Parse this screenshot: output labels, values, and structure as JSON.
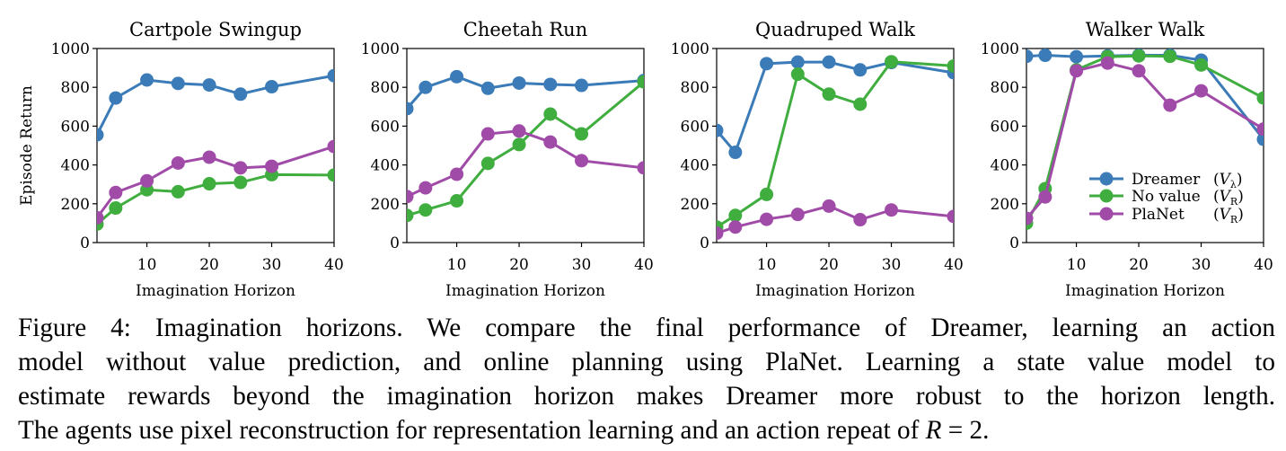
{
  "chart_data": [
    {
      "type": "line",
      "title": "Cartpole Swingup",
      "xlabel": "Imagination Horizon",
      "ylabel": "Episode Return",
      "x": [
        2,
        5,
        10,
        15,
        20,
        25,
        30,
        40
      ],
      "xlim": [
        2,
        40
      ],
      "ylim": [
        0,
        1000
      ],
      "xticks": [
        10,
        20,
        30,
        40
      ],
      "yticks": [
        0,
        200,
        400,
        600,
        800,
        1000
      ],
      "series": [
        {
          "name": "Dreamer",
          "color": "#3a7bb8",
          "values": [
            555,
            745,
            838,
            820,
            812,
            765,
            803,
            860
          ]
        },
        {
          "name": "No value",
          "color": "#3fae3f",
          "values": [
            95,
            178,
            272,
            262,
            303,
            310,
            350,
            348
          ]
        },
        {
          "name": "PlaNet",
          "color": "#a14ba8",
          "values": [
            128,
            258,
            318,
            410,
            440,
            385,
            393,
            495
          ]
        }
      ]
    },
    {
      "type": "line",
      "title": "Cheetah Run",
      "xlabel": "Imagination Horizon",
      "ylabel": "",
      "x": [
        2,
        5,
        10,
        15,
        20,
        25,
        30,
        40
      ],
      "xlim": [
        2,
        40
      ],
      "ylim": [
        0,
        1000
      ],
      "xticks": [
        10,
        20,
        30,
        40
      ],
      "yticks": [
        0,
        200,
        400,
        600,
        800,
        1000
      ],
      "series": [
        {
          "name": "Dreamer",
          "color": "#3a7bb8",
          "values": [
            690,
            800,
            855,
            795,
            822,
            815,
            810,
            835
          ]
        },
        {
          "name": "No value",
          "color": "#3fae3f",
          "values": [
            140,
            168,
            215,
            408,
            505,
            662,
            560,
            828
          ]
        },
        {
          "name": "PlaNet",
          "color": "#a14ba8",
          "values": [
            237,
            282,
            352,
            560,
            575,
            518,
            422,
            385
          ]
        }
      ]
    },
    {
      "type": "line",
      "title": "Quadruped Walk",
      "xlabel": "Imagination Horizon",
      "ylabel": "",
      "x": [
        2,
        5,
        10,
        15,
        20,
        25,
        30,
        40
      ],
      "xlim": [
        2,
        40
      ],
      "ylim": [
        0,
        1000
      ],
      "xticks": [
        10,
        20,
        30,
        40
      ],
      "yticks": [
        0,
        200,
        400,
        600,
        800,
        1000
      ],
      "series": [
        {
          "name": "Dreamer",
          "color": "#3a7bb8",
          "values": [
            578,
            465,
            922,
            930,
            930,
            890,
            928,
            875
          ]
        },
        {
          "name": "No value",
          "color": "#3fae3f",
          "values": [
            80,
            140,
            248,
            868,
            765,
            713,
            932,
            910
          ]
        },
        {
          "name": "PlaNet",
          "color": "#a14ba8",
          "values": [
            48,
            80,
            120,
            145,
            188,
            118,
            168,
            135
          ]
        }
      ]
    },
    {
      "type": "line",
      "title": "Walker Walk",
      "xlabel": "Imagination Horizon",
      "ylabel": "",
      "x": [
        2,
        5,
        10,
        15,
        20,
        25,
        30,
        40
      ],
      "xlim": [
        2,
        40
      ],
      "ylim": [
        0,
        1000
      ],
      "xticks": [
        10,
        20,
        30,
        40
      ],
      "yticks": [
        0,
        200,
        400,
        600,
        800,
        1000
      ],
      "legend": "bottom-right",
      "series": [
        {
          "name": "Dreamer",
          "color": "#3a7bb8",
          "values": [
            960,
            965,
            958,
            962,
            965,
            965,
            940,
            532
          ]
        },
        {
          "name": "No value",
          "color": "#3fae3f",
          "values": [
            100,
            278,
            890,
            958,
            962,
            960,
            915,
            745
          ]
        },
        {
          "name": "PlaNet",
          "color": "#a14ba8",
          "values": [
            125,
            235,
            885,
            925,
            885,
            708,
            782,
            585
          ]
        }
      ]
    }
  ],
  "legend": [
    {
      "label": "Dreamer",
      "subscript": "λ",
      "color": "#3a7bb8"
    },
    {
      "label": "No value",
      "subscript": "R",
      "color": "#3fae3f"
    },
    {
      "label": "PlaNet",
      "subscript": "R",
      "color": "#a14ba8"
    }
  ],
  "caption": {
    "line1": "Figure 4: Imagination horizons. We compare the final performance of Dreamer, learning an action",
    "line2": "model without value prediction, and online planning using PlaNet. Learning a state value model to",
    "line3": "estimate rewards beyond the imagination horizon makes Dreamer more robust to the horizon length.",
    "line4_prefix": "The agents use pixel reconstruction for representation learning and an action repeat of ",
    "line4_var": "R",
    "line4_eq": " = 2."
  }
}
